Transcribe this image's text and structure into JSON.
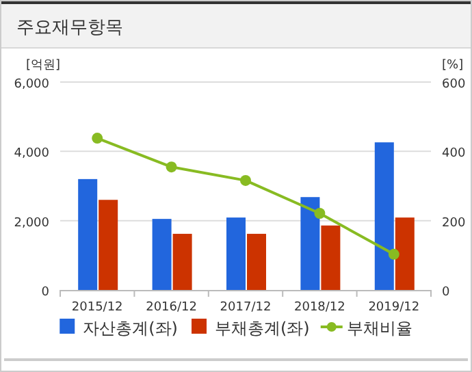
{
  "chart_data": {
    "type": "bar",
    "title": "주요재무항목",
    "categories": [
      "2015/12",
      "2016/12",
      "2017/12",
      "2018/12",
      "2019/12"
    ],
    "ylabel": "[억원]",
    "y2label": "[%]",
    "ylim": [
      0,
      6000
    ],
    "yticks": [
      {
        "value": 0,
        "label": "0"
      },
      {
        "value": 2000,
        "label": "2,000"
      },
      {
        "value": 4000,
        "label": "4,000"
      },
      {
        "value": 6000,
        "label": "6,000"
      }
    ],
    "y2lim": [
      0,
      600
    ],
    "y2ticks": [
      0,
      200,
      400,
      600
    ],
    "series": [
      {
        "name": "자산총계(좌)",
        "color": "#2266dd",
        "values": [
          3200,
          2050,
          2090,
          2680,
          4260
        ]
      },
      {
        "name": "부채총계(좌)",
        "color": "#cc3300",
        "values": [
          2600,
          1620,
          1620,
          1860,
          2090
        ]
      },
      {
        "name": "부채비율",
        "type": "line",
        "axis": "y2",
        "color": "#88bb22",
        "marker": "circle",
        "values": [
          438,
          355,
          316,
          221,
          103
        ]
      }
    ],
    "grid": "y",
    "legend": "bottom"
  }
}
